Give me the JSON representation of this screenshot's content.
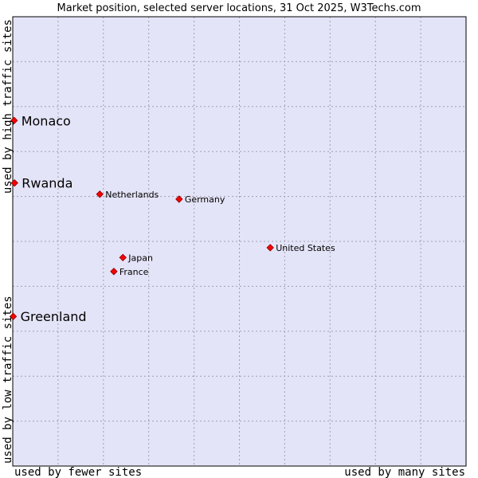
{
  "chart_data": {
    "type": "scatter",
    "title": "Market position, selected server locations, 31 Oct 2025, W3Techs.com",
    "xlabel_left": "used by fewer sites",
    "xlabel_right": "used by many sites",
    "ylabel_bottom": "used by low traffic sites",
    "ylabel_top": "used by high traffic sites",
    "xlim": [
      0,
      100
    ],
    "ylim": [
      0,
      100
    ],
    "grid": true,
    "colors": {
      "plot_background": "#e4e4f8",
      "grid": "#a0a0b0",
      "marker": "#ff0000",
      "marker_edge": "#990000",
      "border": "#000000"
    },
    "points": [
      {
        "label": "Monaco",
        "x": 0.3,
        "y": 76.9,
        "emphasis": true
      },
      {
        "label": "Rwanda",
        "x": 0.4,
        "y": 63.0,
        "emphasis": true
      },
      {
        "label": "Greenland",
        "x": 0.1,
        "y": 33.3,
        "emphasis": true
      },
      {
        "label": "Netherlands",
        "x": 19.2,
        "y": 60.5,
        "emphasis": false
      },
      {
        "label": "Germany",
        "x": 36.7,
        "y": 59.4,
        "emphasis": false
      },
      {
        "label": "United States",
        "x": 56.8,
        "y": 48.6,
        "emphasis": false
      },
      {
        "label": "Japan",
        "x": 24.3,
        "y": 46.4,
        "emphasis": false
      },
      {
        "label": "France",
        "x": 22.3,
        "y": 43.3,
        "emphasis": false
      }
    ]
  }
}
